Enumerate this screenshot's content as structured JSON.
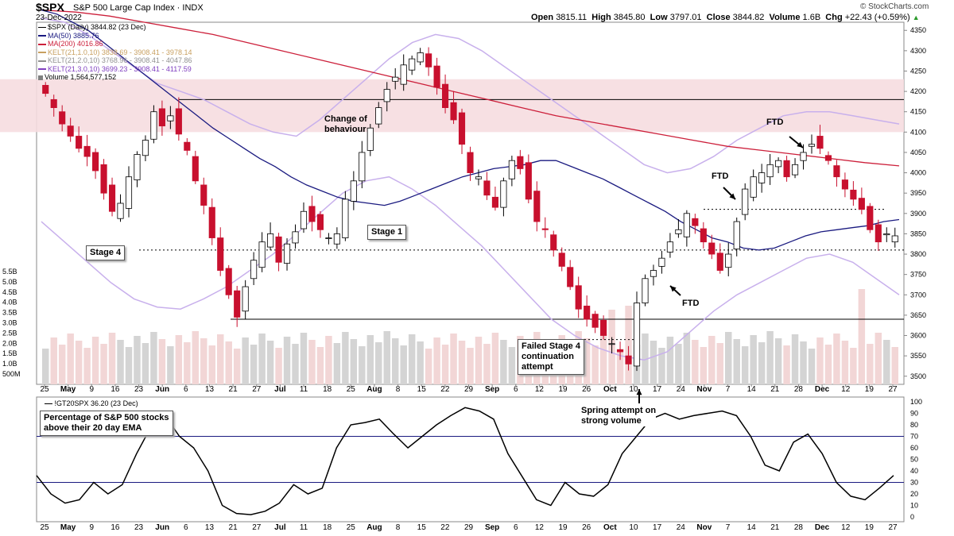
{
  "header": {
    "symbol": "$SPX",
    "name": "S&P 500 Large Cap Index",
    "exchange": "INDX",
    "date": "23-Dec-2022",
    "open_label": "Open",
    "open": "3815.11",
    "high_label": "High",
    "high": "3845.80",
    "low_label": "Low",
    "low": "3797.01",
    "close_label": "Close",
    "close": "3844.82",
    "volume_label": "Volume",
    "volume": "1.6B",
    "chg_label": "Chg",
    "chg": "+22.43 (+0.59%)",
    "watermark": "© StockCharts.com"
  },
  "legend": [
    {
      "text": "$SPX (Daily) 3844.82 (23 Dec)",
      "color": "#000000"
    },
    {
      "text": "MA(50) 3885.76",
      "color": "#1a1a80"
    },
    {
      "text": "MA(200) 4016.86",
      "color": "#cc1f3a"
    },
    {
      "text": "KELT(21,1.0,10) 3838.69 - 3908.41 - 3978.14",
      "color": "#c8a060"
    },
    {
      "text": "KELT(21,2.0,10) 3768.96 - 3908.41 - 4047.86",
      "color": "#909090"
    },
    {
      "text": "KELT(21,3.0,10) 3699.23 - 3908.41 - 4117.59",
      "color": "#8040c0"
    },
    {
      "text": "Volume 1,564,577,152",
      "color": "#808080"
    }
  ],
  "annotations": {
    "stage4": "Stage 4",
    "stage1": "Stage 1",
    "change": [
      "Change of",
      "behaviour"
    ],
    "failed": [
      "Failed Stage 4",
      "continuation",
      "attempt"
    ],
    "spring": [
      "Spring attempt on",
      "strong volume"
    ],
    "ftd1": "FTD",
    "ftd2": "FTD",
    "ftd3": "FTD"
  },
  "lower_panel": {
    "legend": "!GT20SPX 36.20 (23 Dec)",
    "title": [
      "Percentage of S&P 500 stocks",
      "above their 20 day EMA"
    ]
  },
  "chart_data": {
    "type": "candlestick",
    "x_labels": [
      "25",
      "May",
      "9",
      "16",
      "23",
      "Jun",
      "6",
      "13",
      "21",
      "27",
      "Jul",
      "11",
      "18",
      "25",
      "Aug",
      "8",
      "15",
      "22",
      "29",
      "Sep",
      "6",
      "12",
      "19",
      "26",
      "Oct",
      "10",
      "17",
      "24",
      "Nov",
      "7",
      "14",
      "21",
      "28",
      "Dec",
      "12",
      "19",
      "27"
    ],
    "y_ticks": [
      3500,
      3550,
      3600,
      3650,
      3700,
      3750,
      3800,
      3850,
      3900,
      3950,
      4000,
      4050,
      4100,
      4150,
      4200,
      4250,
      4300,
      4350
    ],
    "ylim": [
      3480,
      4370
    ],
    "volume_ticks": [
      "500M",
      "1.0B",
      "1.5B",
      "2.0B",
      "2.5B",
      "3.0B",
      "3.5B",
      "4.0B",
      "4.5B",
      "5.0B",
      "5.5B"
    ],
    "horizontal_levels": [
      4180,
      3640
    ],
    "dotted_levels": [
      {
        "value": 3810,
        "from": "May",
        "to": "27"
      },
      {
        "value": 3910,
        "from": "Nov",
        "to": "19"
      },
      {
        "value": 3590,
        "from": "26",
        "to": "10"
      }
    ],
    "resistance_zone": [
      4100,
      4230
    ],
    "close_path": [
      4195,
      4160,
      4120,
      4090,
      4060,
      4040,
      4005,
      3950,
      3905,
      3925,
      3990,
      4045,
      4080,
      4150,
      4115,
      4140,
      4095,
      4055,
      3980,
      3920,
      3840,
      3760,
      3700,
      3645,
      3720,
      3785,
      3830,
      3850,
      3780,
      3825,
      3855,
      3905,
      3880,
      3860,
      3840,
      3850,
      3935,
      3980,
      4050,
      4110,
      4160,
      4205,
      4235,
      4265,
      4280,
      4295,
      4260,
      4210,
      4160,
      4130,
      4070,
      4000,
      3990,
      3945,
      3915,
      3980,
      4030,
      4010,
      3935,
      3880,
      3860,
      3810,
      3770,
      3720,
      3665,
      3640,
      3620,
      3600,
      3580,
      3560,
      3530,
      3680,
      3740,
      3760,
      3790,
      3830,
      3860,
      3900,
      3870,
      3830,
      3800,
      3760,
      3800,
      3880,
      3960,
      3990,
      4000,
      4020,
      4030,
      3990,
      4020,
      4050,
      4070,
      4060,
      4030,
      3990,
      3960,
      3935,
      3910,
      3860,
      3830,
      3850,
      3845
    ],
    "ma50": [
      4400,
      4390,
      4370,
      4350,
      4320,
      4290,
      4260,
      4230,
      4200,
      4170,
      4140,
      4110,
      4085,
      4060,
      4035,
      4015,
      3990,
      3970,
      3955,
      3940,
      3930,
      3925,
      3920,
      3930,
      3945,
      3960,
      3975,
      3990,
      4000,
      4010,
      4015,
      4020,
      4030,
      4030,
      4015,
      4000,
      3985,
      3965,
      3945,
      3925,
      3905,
      3880,
      3860,
      3840,
      3830,
      3815,
      3810,
      3815,
      3830,
      3845,
      3855,
      3860,
      3865,
      3870,
      3880,
      3885
    ],
    "ma200": [
      4400,
      4395,
      4385,
      4370,
      4355,
      4340,
      4320,
      4300,
      4280,
      4260,
      4240,
      4220,
      4200,
      4180,
      4160,
      4140,
      4125,
      4110,
      4095,
      4080,
      4065,
      4055,
      4045,
      4035,
      4025,
      4017
    ],
    "kelt3_upper": [
      4380,
      4370,
      4340,
      4300,
      4260,
      4220,
      4200,
      4180,
      4150,
      4120,
      4100,
      4090,
      4130,
      4180,
      4230,
      4280,
      4320,
      4340,
      4330,
      4300,
      4260,
      4220,
      4180,
      4140,
      4100,
      4060,
      4020,
      4000,
      4010,
      4040,
      4080,
      4110,
      4140,
      4150,
      4150,
      4140,
      4130,
      4120
    ],
    "kelt3_lower": [
      3880,
      3830,
      3780,
      3730,
      3690,
      3670,
      3665,
      3690,
      3720,
      3760,
      3800,
      3850,
      3900,
      3950,
      3980,
      3990,
      3960,
      3920,
      3870,
      3820,
      3760,
      3700,
      3640,
      3600,
      3570,
      3550,
      3540,
      3560,
      3610,
      3660,
      3700,
      3730,
      3760,
      3790,
      3800,
      3780,
      3740,
      3700
    ],
    "gt20_values": [
      36,
      20,
      12,
      15,
      30,
      20,
      28,
      55,
      78,
      88,
      70,
      60,
      40,
      10,
      3,
      2,
      5,
      12,
      28,
      20,
      25,
      60,
      80,
      82,
      85,
      72,
      60,
      70,
      80,
      88,
      95,
      92,
      85,
      55,
      35,
      15,
      10,
      30,
      20,
      18,
      28,
      55,
      70,
      85,
      90,
      85,
      88,
      90,
      92,
      88,
      70,
      45,
      40,
      65,
      72,
      55,
      30,
      18,
      15,
      25,
      36
    ],
    "gt20_ylim": [
      0,
      100
    ],
    "gt20_ref_lines": [
      70,
      30
    ]
  }
}
